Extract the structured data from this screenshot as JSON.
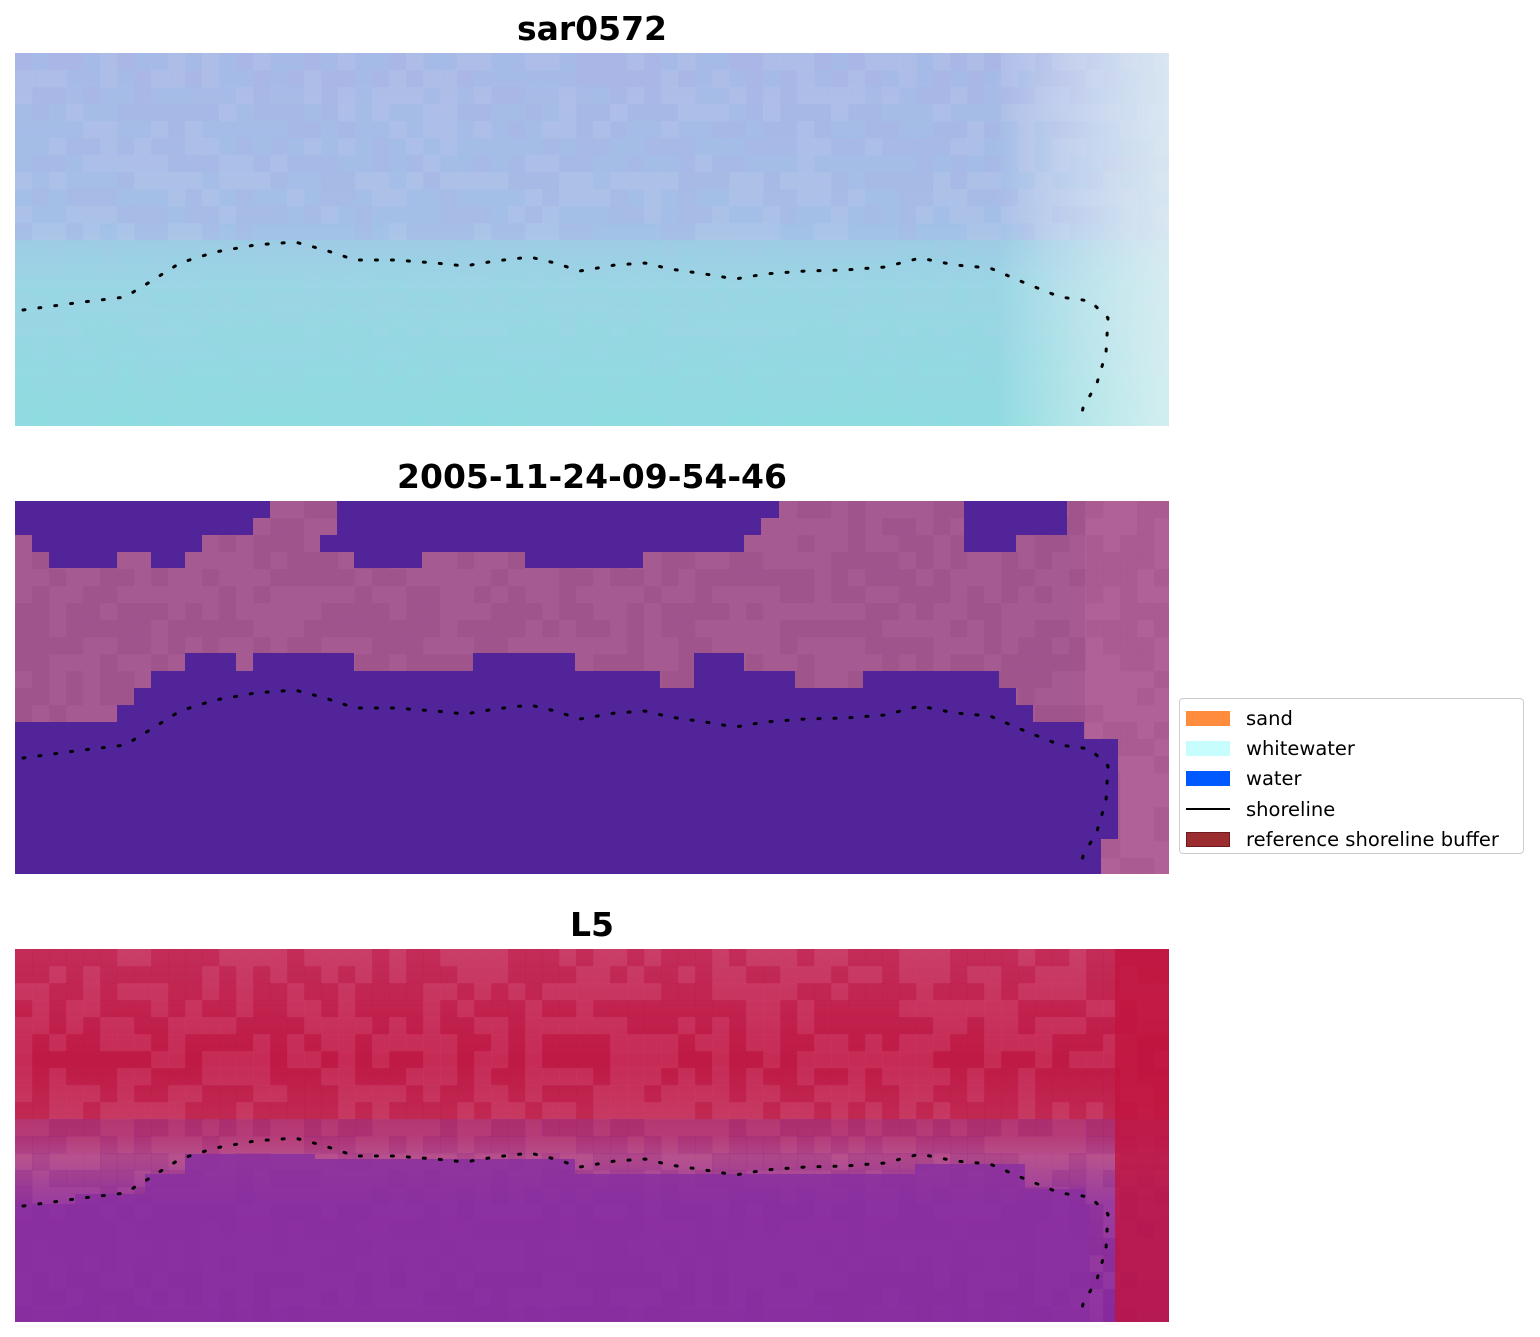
{
  "panels": [
    {
      "title": "sar0572",
      "image_desc": "rgb-composite-tile",
      "base_colors": [
        "#a9b6e6",
        "#b8c8ea",
        "#a0c2e8",
        "#96d6e2",
        "#8edbe0",
        "#d8eef0"
      ]
    },
    {
      "title": "2005-11-24-09-54-46",
      "image_desc": "classified-tile",
      "land_color": "#a2568e",
      "water_color": "#51249a"
    },
    {
      "title": "L5",
      "image_desc": "index-tile",
      "high_color": "#c3204e",
      "low_color": "#7f2aa0"
    }
  ],
  "legend": {
    "items": [
      {
        "label": "sand",
        "color": "#ff8c3c",
        "type": "patch"
      },
      {
        "label": "whitewater",
        "color": "#c8fdfd",
        "type": "patch"
      },
      {
        "label": "water",
        "color": "#0059ff",
        "type": "patch"
      },
      {
        "label": "shoreline",
        "color": "#000000",
        "type": "line"
      },
      {
        "label": "reference shoreline buffer",
        "color": "#9b2c30",
        "edge": "#6e1a1e",
        "type": "patch"
      }
    ]
  }
}
